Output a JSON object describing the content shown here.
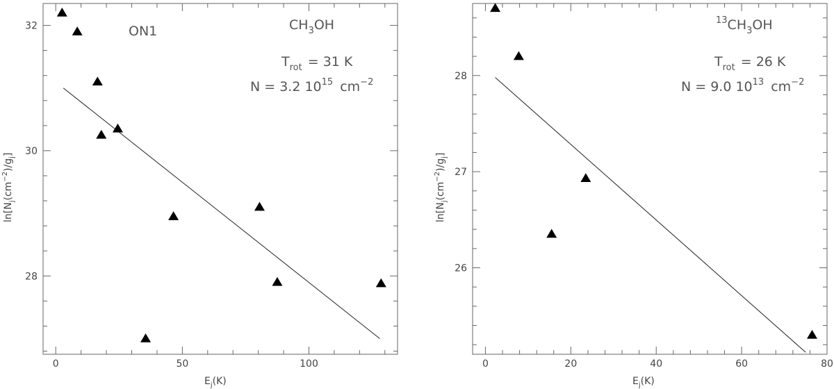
{
  "chart_data": [
    {
      "type": "scatter",
      "source_label": "ON1",
      "molecule": {
        "base": "CH",
        "sub": "3",
        "rest": "OH"
      },
      "trot": {
        "label": "T",
        "sub": "rot",
        "value": "= 31 K"
      },
      "column": {
        "prefix": "N = 3.2 10",
        "exp": "15",
        "unit": "cm",
        "unit_exp": "−2"
      },
      "xlabel": {
        "base": "E",
        "sub": "j",
        "rest": "(K)"
      },
      "ylabel": {
        "a": "ln[N",
        "b": "j",
        "c": "(cm",
        "d": "−2",
        "e": ")/g",
        "f": "j",
        "g": "]"
      },
      "xlim": [
        -5,
        135
      ],
      "ylim": [
        26.75,
        32.35
      ],
      "xticks": [
        0,
        50,
        100
      ],
      "yticks": [
        28,
        30,
        32
      ],
      "points": [
        {
          "x": 2.5,
          "y": 32.2
        },
        {
          "x": 8.5,
          "y": 31.9
        },
        {
          "x": 16.5,
          "y": 31.1
        },
        {
          "x": 18,
          "y": 30.25
        },
        {
          "x": 24.5,
          "y": 30.35
        },
        {
          "x": 35.5,
          "y": 27.0
        },
        {
          "x": 46.5,
          "y": 28.95
        },
        {
          "x": 80.5,
          "y": 29.1
        },
        {
          "x": 87.5,
          "y": 27.9
        },
        {
          "x": 128.5,
          "y": 27.88
        }
      ],
      "fit": [
        {
          "x": 3,
          "y": 31.0
        },
        {
          "x": 128,
          "y": 27.0
        }
      ]
    },
    {
      "type": "scatter",
      "source_label": "",
      "molecule": {
        "pre": "13",
        "base": "CH",
        "sub": "3",
        "rest": "OH"
      },
      "trot": {
        "label": "T",
        "sub": "rot",
        "value": "= 26 K"
      },
      "column": {
        "prefix": "N = 9.0 10",
        "exp": "13",
        "unit": "cm",
        "unit_exp": "−2"
      },
      "xlabel": {
        "base": "E",
        "sub": "j",
        "rest": "(K)"
      },
      "ylabel": {
        "a": "ln[N",
        "b": "j",
        "c": "(cm",
        "d": "−2",
        "e": ")/g",
        "f": "j",
        "g": "]"
      },
      "xlim": [
        -3,
        80
      ],
      "ylim": [
        25.1,
        28.75
      ],
      "xticks": [
        0,
        20,
        40,
        60,
        80
      ],
      "yticks": [
        26,
        27,
        28
      ],
      "points": [
        {
          "x": 2.3,
          "y": 28.7
        },
        {
          "x": 7.8,
          "y": 28.2
        },
        {
          "x": 15.5,
          "y": 26.35
        },
        {
          "x": 23.5,
          "y": 26.93
        },
        {
          "x": 76.5,
          "y": 25.3
        }
      ],
      "fit": [
        {
          "x": 2.3,
          "y": 27.98
        },
        {
          "x": 75,
          "y": 25.12
        }
      ]
    }
  ]
}
